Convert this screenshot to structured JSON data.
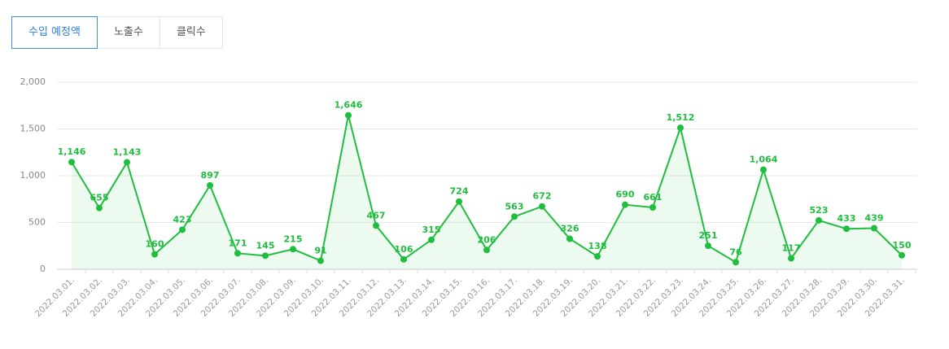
{
  "tabs": [
    "수입 예정액",
    "노출수",
    "클릭수"
  ],
  "active_tab": 0,
  "chart_data": {
    "type": "line",
    "area": true,
    "grid": true,
    "color": "#1fbe3f",
    "categories": [
      "2022.03.01.",
      "2022.03.02.",
      "2022.03.03.",
      "2022.03.04.",
      "2022.03.05.",
      "2022.03.06.",
      "2022.03.07.",
      "2022.03.08.",
      "2022.03.09.",
      "2022.03.10.",
      "2022.03.11.",
      "2022.03.12.",
      "2022.03.13.",
      "2022.03.14.",
      "2022.03.15.",
      "2022.03.16.",
      "2022.03.17.",
      "2022.03.18.",
      "2022.03.19.",
      "2022.03.20.",
      "2022.03.21.",
      "2022.03.22.",
      "2022.03.23.",
      "2022.03.24.",
      "2022.03.25.",
      "2022.03.26.",
      "2022.03.27.",
      "2022.03.28.",
      "2022.03.29.",
      "2022.03.30.",
      "2022.03.31."
    ],
    "values": [
      1146,
      655,
      1143,
      160,
      423,
      897,
      171,
      145,
      215,
      91,
      1646,
      467,
      106,
      315,
      724,
      206,
      563,
      672,
      326,
      138,
      690,
      661,
      1512,
      251,
      76,
      1064,
      117,
      523,
      433,
      439,
      150
    ],
    "value_labels": [
      "1,146",
      "655",
      "1,143",
      "160",
      "423",
      "897",
      "171",
      "145",
      "215",
      "91",
      "1,646",
      "467",
      "106",
      "315",
      "724",
      "206",
      "563",
      "672",
      "326",
      "138",
      "690",
      "661",
      "1,512",
      "251",
      "76",
      "1,064",
      "117",
      "523",
      "433",
      "439",
      "150"
    ],
    "ylim": [
      0,
      2000
    ],
    "yticks": [
      0,
      500,
      {
        "value": 1000,
        "label": "1,000"
      },
      {
        "value": 1500,
        "label": "1,500"
      },
      {
        "value": 2000,
        "label": "2,000"
      }
    ]
  }
}
